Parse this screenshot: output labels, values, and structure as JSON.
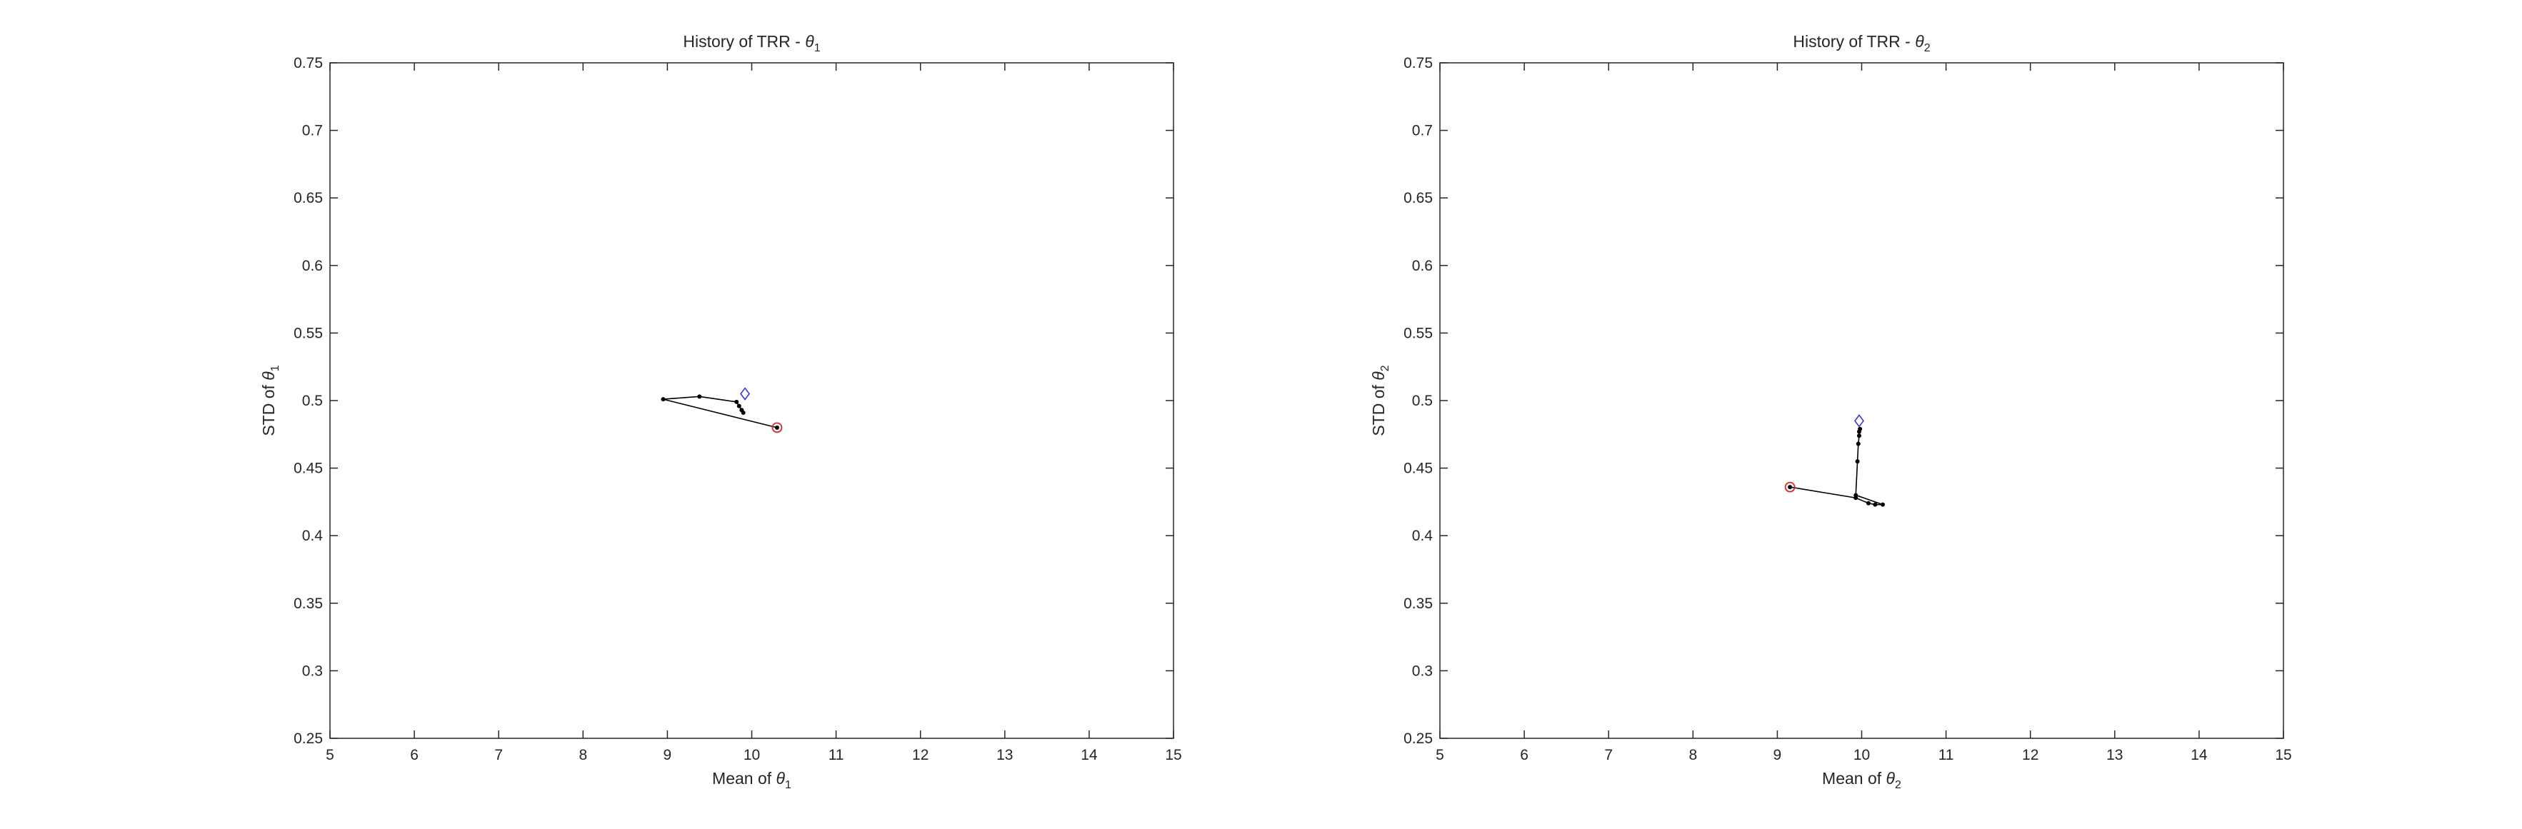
{
  "chart_data": [
    {
      "type": "line",
      "title_prefix": "History of TRR - ",
      "title_symbol": "θ",
      "title_subscript": "1",
      "xlabel_prefix": "Mean of ",
      "xlabel_symbol": "θ",
      "xlabel_subscript": "1",
      "ylabel_prefix": "STD of ",
      "ylabel_symbol": "θ",
      "ylabel_subscript": "1",
      "xlim": [
        5,
        15
      ],
      "ylim": [
        0.25,
        0.75
      ],
      "xticks": [
        "5",
        "6",
        "7",
        "8",
        "9",
        "10",
        "11",
        "12",
        "13",
        "14",
        "15"
      ],
      "yticks": [
        "0.25",
        "0.3",
        "0.35",
        "0.4",
        "0.45",
        "0.5",
        "0.55",
        "0.6",
        "0.65",
        "0.7",
        "0.75"
      ],
      "grid": false,
      "series": [
        {
          "style": "black line with dot markers",
          "color": "#000000",
          "x": [
            10.3,
            8.95,
            9.38,
            9.82,
            9.85,
            9.88,
            9.9
          ],
          "y": [
            0.48,
            0.501,
            0.503,
            0.499,
            0.496,
            0.493,
            0.491
          ]
        }
      ],
      "start_marker": {
        "shape": "red circle",
        "color": "#d62728",
        "x": 10.3,
        "y": 0.48
      },
      "end_marker": {
        "shape": "blue diamond",
        "color": "#3a3ad6",
        "x": 9.92,
        "y": 0.505
      }
    },
    {
      "type": "line",
      "title_prefix": "History of TRR - ",
      "title_symbol": "θ",
      "title_subscript": "2",
      "xlabel_prefix": "Mean of ",
      "xlabel_symbol": "θ",
      "xlabel_subscript": "2",
      "ylabel_prefix": "STD of ",
      "ylabel_symbol": "θ",
      "ylabel_subscript": "2",
      "xlim": [
        5,
        15
      ],
      "ylim": [
        0.25,
        0.75
      ],
      "xticks": [
        "5",
        "6",
        "7",
        "8",
        "9",
        "10",
        "11",
        "12",
        "13",
        "14",
        "15"
      ],
      "yticks": [
        "0.25",
        "0.3",
        "0.35",
        "0.4",
        "0.45",
        "0.5",
        "0.55",
        "0.6",
        "0.65",
        "0.7",
        "0.75"
      ],
      "grid": false,
      "series": [
        {
          "style": "black line with dot markers",
          "color": "#000000",
          "x": [
            9.15,
            9.93,
            10.08,
            10.16,
            10.25,
            9.93,
            9.95,
            9.96,
            9.97,
            9.97,
            9.98
          ],
          "y": [
            0.436,
            0.428,
            0.424,
            0.423,
            0.423,
            0.43,
            0.455,
            0.468,
            0.474,
            0.477,
            0.479
          ]
        }
      ],
      "start_marker": {
        "shape": "red circle",
        "color": "#d62728",
        "x": 9.15,
        "y": 0.436
      },
      "end_marker": {
        "shape": "blue diamond",
        "color": "#3a3ad6",
        "x": 9.97,
        "y": 0.485
      }
    }
  ]
}
